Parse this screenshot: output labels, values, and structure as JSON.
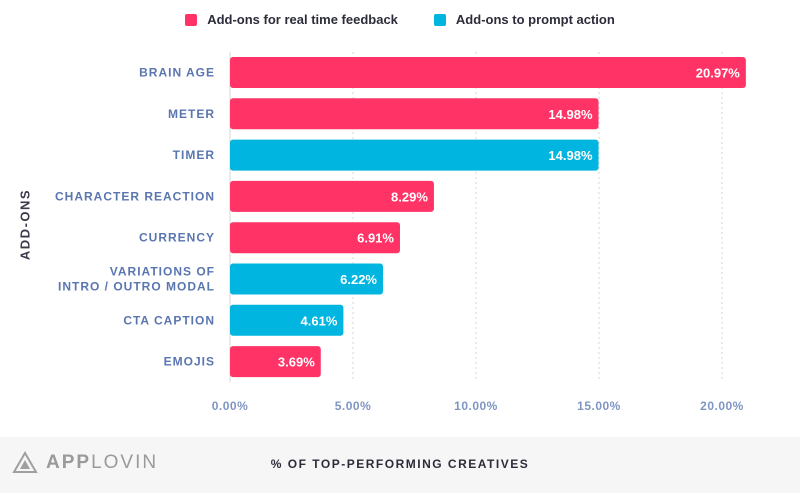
{
  "chart_data": {
    "type": "bar",
    "orientation": "horizontal",
    "xlabel": "% OF TOP-PERFORMING CREATIVES",
    "ylabel": "ADD-ONS",
    "xlim": [
      0,
      22
    ],
    "xticks": [
      0,
      5,
      10,
      15,
      20
    ],
    "xtick_labels": [
      "0.00%",
      "5.00%",
      "10.00%",
      "15.00%",
      "20.00%"
    ],
    "legend": [
      {
        "name": "Add-ons for real time feedback",
        "color": "#ff3366"
      },
      {
        "name": "Add-ons to prompt action",
        "color": "#00b6e0"
      }
    ],
    "bars": [
      {
        "label": [
          "BRAIN AGE"
        ],
        "value": 20.97,
        "value_label": "20.97%",
        "series": 0
      },
      {
        "label": [
          "METER"
        ],
        "value": 14.98,
        "value_label": "14.98%",
        "series": 0
      },
      {
        "label": [
          "TIMER"
        ],
        "value": 14.98,
        "value_label": "14.98%",
        "series": 1
      },
      {
        "label": [
          "CHARACTER REACTION"
        ],
        "value": 8.29,
        "value_label": "8.29%",
        "series": 0
      },
      {
        "label": [
          "CURRENCY"
        ],
        "value": 6.91,
        "value_label": "6.91%",
        "series": 0
      },
      {
        "label": [
          "VARIATIONS OF",
          "INTRO / OUTRO MODAL"
        ],
        "value": 6.22,
        "value_label": "6.22%",
        "series": 1
      },
      {
        "label": [
          "CTA CAPTION"
        ],
        "value": 4.61,
        "value_label": "4.61%",
        "series": 1
      },
      {
        "label": [
          "EMOJIS"
        ],
        "value": 3.69,
        "value_label": "3.69%",
        "series": 0
      }
    ]
  },
  "legend": {
    "item1": "Add-ons for real time feedback",
    "item2": "Add-ons to prompt action"
  },
  "footer": {
    "brand_part1": "APP",
    "brand_part2": "LOVIN"
  },
  "colors": {
    "feedback": "#ff3366",
    "prompt": "#00b6e0",
    "category_text": "#5a76b0",
    "tick_text": "#7f95c2",
    "grid": "#d7d7d7"
  }
}
